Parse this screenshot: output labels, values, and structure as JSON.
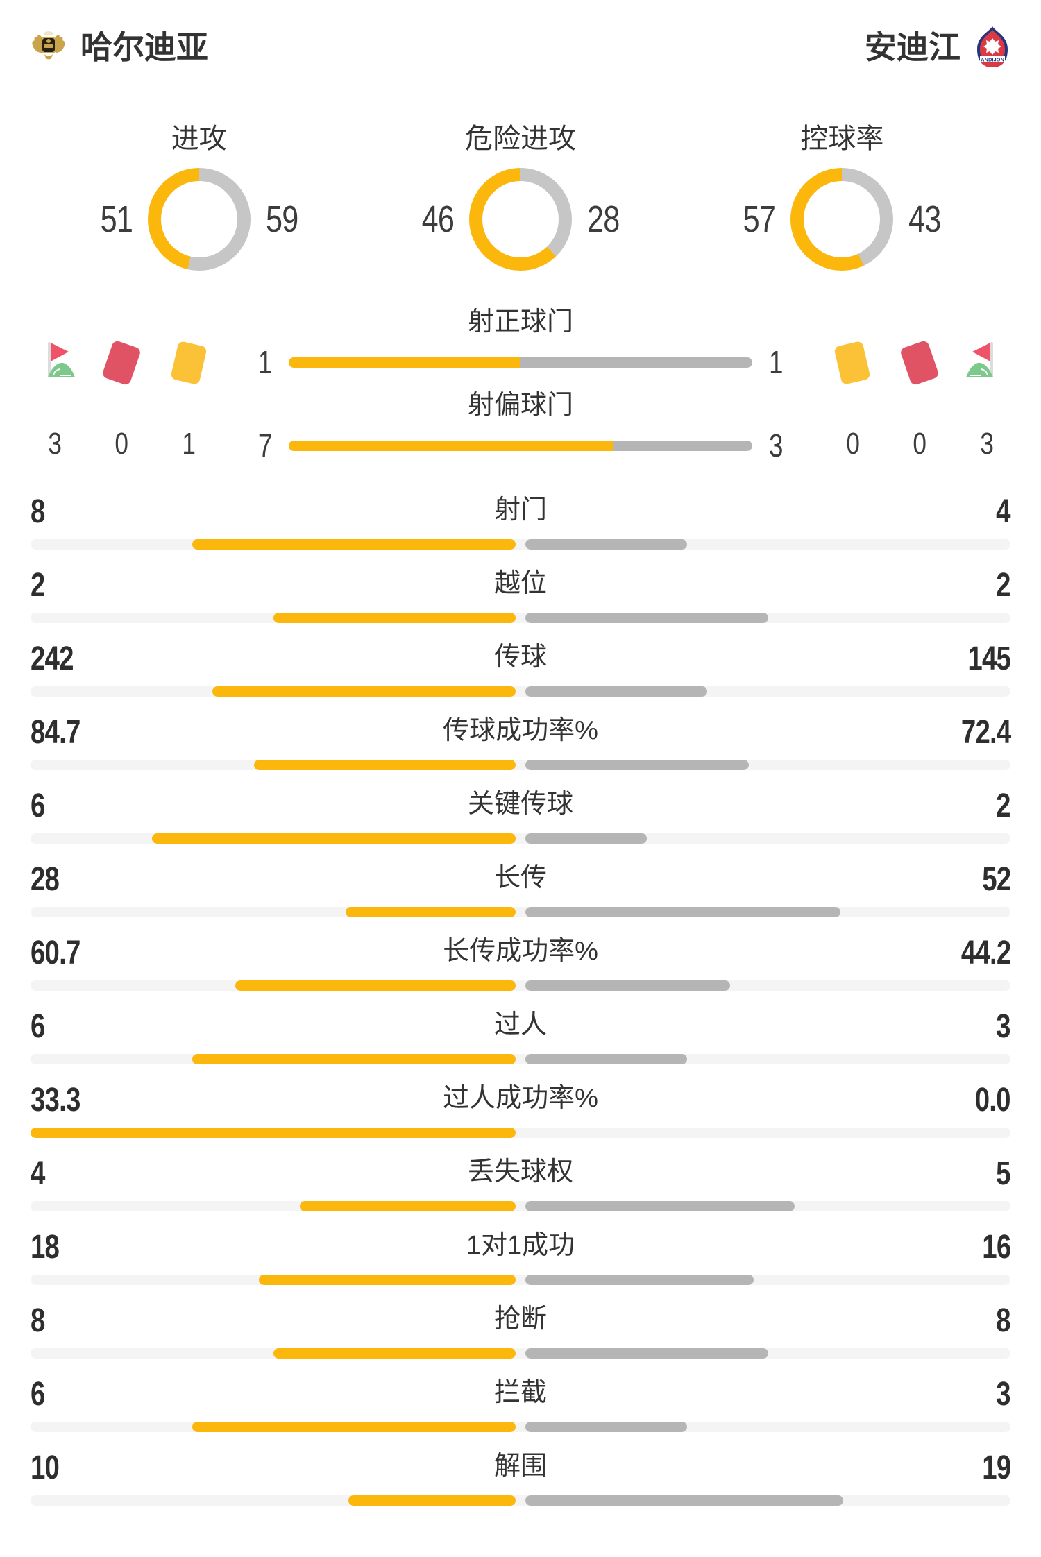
{
  "header": {
    "home_name": "哈尔迪亚",
    "away_name": "安迪江",
    "away_logo_text": "ANDIJON"
  },
  "chart_data": {
    "type": "table",
    "description": "Football match statistics comparison, home (yellow, left) vs away (gray, right)",
    "donuts": [
      {
        "label": "进攻",
        "home": 51,
        "away": 59
      },
      {
        "label": "危险进攻",
        "home": 46,
        "away": 28
      },
      {
        "label": "控球率",
        "home": 57,
        "away": 43
      }
    ],
    "discipline": {
      "home": {
        "corners": 3,
        "red_cards": 0,
        "yellow_cards": 1
      },
      "away": {
        "yellow_cards": 0,
        "red_cards": 0,
        "corners": 3
      }
    },
    "shot_bars": [
      {
        "label": "射正球门",
        "home": 1,
        "away": 1
      },
      {
        "label": "射偏球门",
        "home": 7,
        "away": 3
      }
    ],
    "stats": [
      {
        "label": "射门",
        "home": "8",
        "away": "4"
      },
      {
        "label": "越位",
        "home": "2",
        "away": "2"
      },
      {
        "label": "传球",
        "home": "242",
        "away": "145"
      },
      {
        "label": "传球成功率%",
        "home": "84.7",
        "away": "72.4"
      },
      {
        "label": "关键传球",
        "home": "6",
        "away": "2"
      },
      {
        "label": "长传",
        "home": "28",
        "away": "52"
      },
      {
        "label": "长传成功率%",
        "home": "60.7",
        "away": "44.2"
      },
      {
        "label": "过人",
        "home": "6",
        "away": "3"
      },
      {
        "label": "过人成功率%",
        "home": "33.3",
        "away": "0.0"
      },
      {
        "label": "丢失球权",
        "home": "4",
        "away": "5"
      },
      {
        "label": "1对1成功",
        "home": "18",
        "away": "16"
      },
      {
        "label": "抢断",
        "home": "8",
        "away": "8"
      },
      {
        "label": "拦截",
        "home": "6",
        "away": "3"
      },
      {
        "label": "解围",
        "home": "10",
        "away": "19"
      }
    ]
  },
  "colors": {
    "accent_yellow": "#FBB70C",
    "bar_gray": "#B5B5B5",
    "track_gray": "#F4F4F5",
    "donut_gray": "#C6C6C6",
    "card_red": "#E05365",
    "card_yellow": "#FCC237",
    "flag_red": "#EE5368",
    "flag_green": "#7CC98B",
    "text_dark": "#333333"
  }
}
